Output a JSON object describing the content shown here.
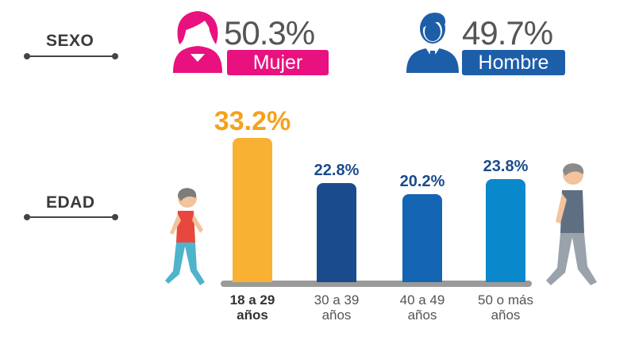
{
  "sexo": {
    "label": "SEXO",
    "mujer": {
      "percent": "50.3%",
      "label": "Mujer",
      "color": "#e8117f",
      "icon": "woman-icon"
    },
    "hombre": {
      "percent": "49.7%",
      "label": "Hombre",
      "color": "#1d5ea8",
      "icon": "man-icon"
    }
  },
  "edad": {
    "label": "EDAD",
    "icons": [
      "young-walker-icon",
      "older-walker-icon"
    ]
  },
  "chart_data": {
    "type": "bar",
    "categories": [
      "18 a 29 años",
      "30 a 39 años",
      "40 a 49 años",
      "50 o más años"
    ],
    "category_lines": [
      [
        "18 a 29",
        "años"
      ],
      [
        "30 a 39",
        "años"
      ],
      [
        "40 a 49",
        "años"
      ],
      [
        "50 o más",
        "años"
      ]
    ],
    "values": [
      33.2,
      22.8,
      20.2,
      23.8
    ],
    "value_labels": [
      "33.2%",
      "22.8%",
      "20.2%",
      "23.8%"
    ],
    "colors": [
      "#f8b133",
      "#1a4b8c",
      "#1565b5",
      "#0a88cc"
    ],
    "label_colors": [
      "#f4a21c",
      "#1a4b8c",
      "#1a4b8c",
      "#1a4b8c"
    ],
    "title": "",
    "xlabel": "",
    "ylabel": ""
  }
}
